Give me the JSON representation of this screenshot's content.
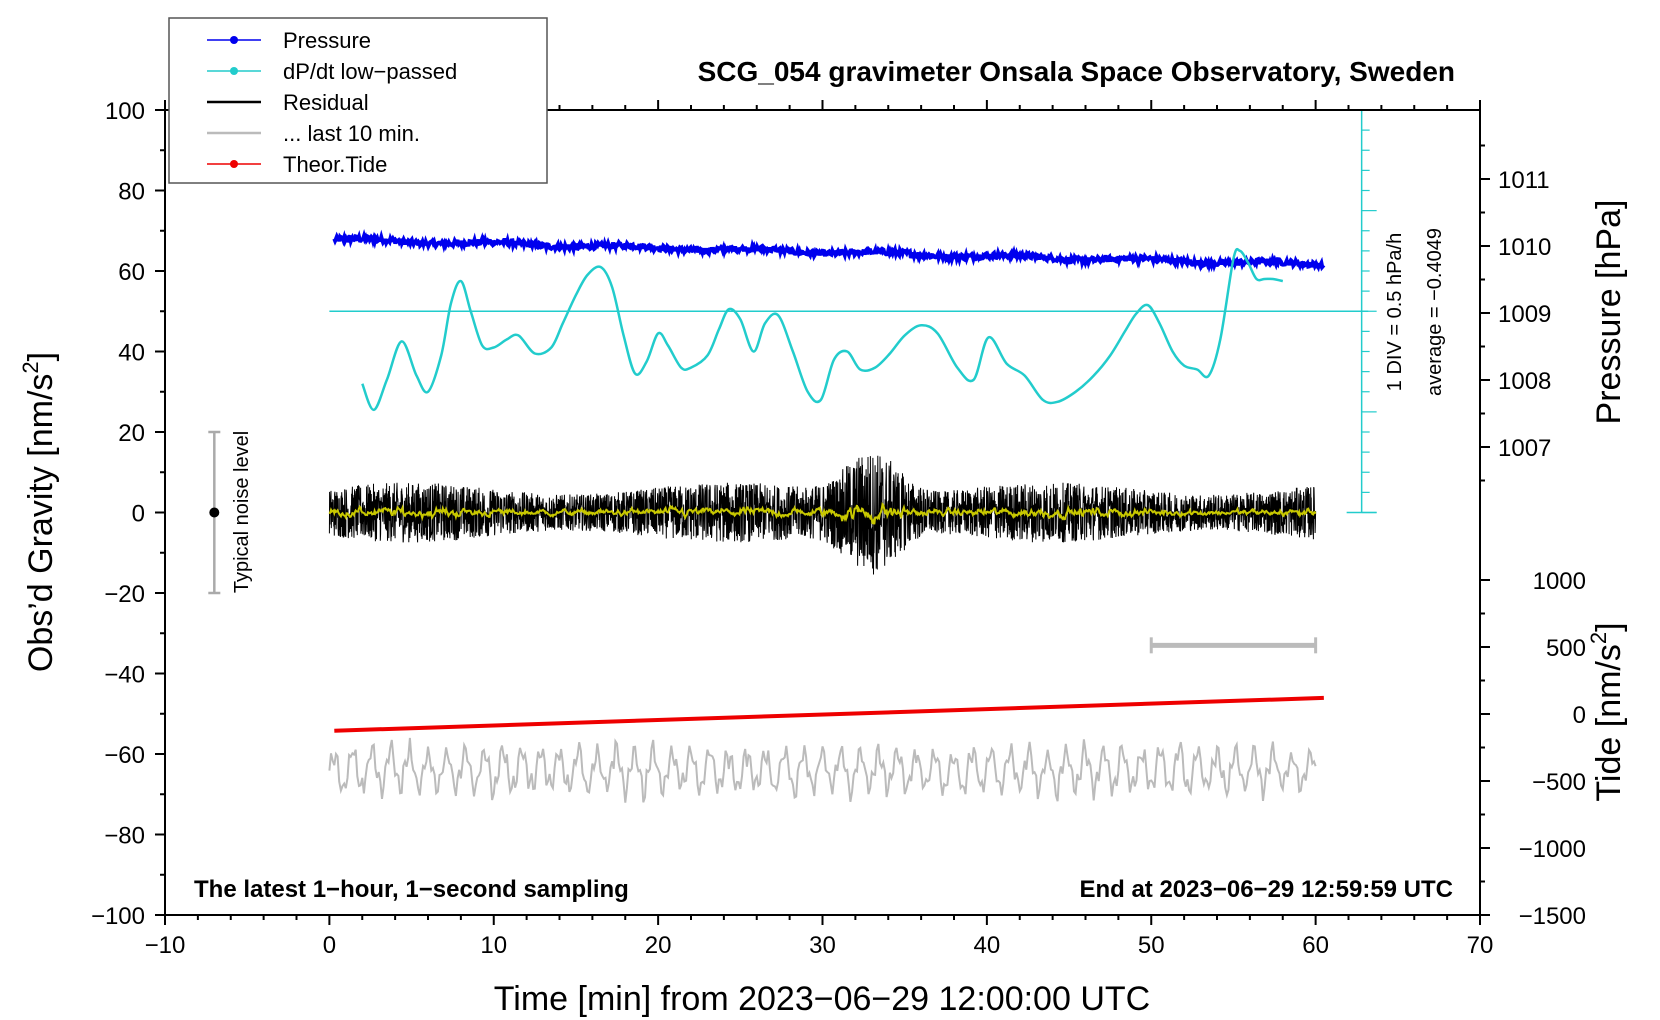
{
  "chart_data": {
    "type": "line",
    "title": "SCG_054 gravimeter Onsala Space Observatory, Sweden",
    "xlabel": "Time [min] from 2023−06−29 12:00:00 UTC",
    "ylabel_left_main": "Obs’d Gravity [nm/s",
    "ylabel_left_sup": "2",
    "ylabel_left_end": "]",
    "ylabel_right_pressure": "Pressure [hPa]",
    "ylabel_right_tide_main": "Tide [nm/s",
    "ylabel_right_tide_sup": "2",
    "ylabel_right_tide_end": "]",
    "xlim": [
      -10,
      70
    ],
    "ylim_left": [
      -100,
      100
    ],
    "x_ticks": [
      "−10",
      "0",
      "10",
      "20",
      "30",
      "40",
      "50",
      "60",
      "70"
    ],
    "y_ticks_left": [
      "100",
      "80",
      "60",
      "40",
      "20",
      "0",
      "−20",
      "−40",
      "−60",
      "−80",
      "−100"
    ],
    "pressure_ticks": [
      "1011",
      "1010",
      "1009",
      "1008",
      "1007"
    ],
    "tide_ticks": [
      "1000",
      "500",
      "0",
      "−500",
      "−1000",
      "−1500"
    ],
    "bottom_left_note": "The latest 1−hour, 1−second sampling",
    "bottom_right_note": "End at 2023−06−29 12:59:59 UTC",
    "noise_label": "Typical noise level",
    "dpdt_scale_label": "1 DIV = 0.5 hPa/h",
    "dpdt_average_label": "average = −0.4049",
    "legend": [
      {
        "label": "Pressure",
        "color": "#0000ee",
        "marker": true
      },
      {
        "label": "dP/dt low−passed",
        "color": "#22cccc",
        "marker": true
      },
      {
        "label": "Residual",
        "color": "#000000",
        "marker": false
      },
      {
        "label": "... last 10 min.",
        "color": "#bbbbbb",
        "marker": false
      },
      {
        "label": "Theor.Tide",
        "color": "#ee0000",
        "marker": true
      }
    ],
    "colors": {
      "pressure": "#0000ee",
      "dpdt": "#22cccc",
      "residual": "#000000",
      "residual_smooth": "#c8c800",
      "last10": "#bbbbbb",
      "tide": "#ee0000",
      "noise_bar": "#aaaaaa"
    },
    "series": {
      "pressure": {
        "x": [
          0.3,
          60.5
        ],
        "y_left": [
          67.8,
          61.6
        ],
        "y_hpa": [
          1010.2,
          1009.6
        ]
      },
      "dpdt_reference_y_left": 50,
      "dpdt": {
        "x": [
          2,
          2.7,
          3.5,
          4.4,
          5.3,
          6.0,
          6.8,
          7.4,
          8.0,
          8.6,
          9.3,
          10,
          10.8,
          11.5,
          12.5,
          13.5,
          14.2,
          15,
          15.7,
          16.5,
          17.2,
          17.9,
          18.6,
          19.3,
          20,
          20.6,
          21.4,
          22,
          23,
          23.7,
          24.3,
          25,
          25.8,
          26.5,
          27.3,
          28.2,
          29.1,
          29.9,
          30.7,
          31.5,
          32.3,
          33.2,
          34.1,
          35,
          36,
          37,
          38.2,
          39.2,
          40.1,
          41.2,
          42.3,
          43.4,
          44.3,
          45.4,
          46.5,
          47.5,
          48.4,
          49.1,
          49.8,
          50.5,
          51.3,
          52,
          52.8,
          53.5,
          54.2,
          55,
          55.4,
          55.9,
          56.4,
          56.9,
          57.4,
          58
        ],
        "y": [
          32,
          25.5,
          33,
          42.5,
          34,
          30,
          39,
          52,
          57.5,
          50,
          41.5,
          41,
          43,
          44,
          39.5,
          41,
          47,
          54,
          59,
          61,
          56,
          44,
          34.5,
          37.5,
          44.5,
          41.5,
          36,
          36,
          39,
          45.5,
          50.5,
          48,
          40,
          47,
          49,
          40,
          30,
          28,
          38,
          40,
          35.5,
          36,
          39.5,
          44,
          46.5,
          44.5,
          36,
          33,
          43.5,
          37,
          34,
          28,
          27.5,
          30,
          34,
          39,
          45,
          49.5,
          51.5,
          47,
          40,
          36.5,
          35.5,
          34,
          43,
          63,
          65,
          62,
          58,
          58,
          58,
          57.5
        ]
      },
      "residual": {
        "x_range": [
          0,
          60
        ],
        "center": 0
      },
      "tide": {
        "x": [
          0.3,
          60.5
        ],
        "y_nms2": [
          -125,
          120
        ]
      },
      "last10_bar": {
        "x": [
          50,
          60
        ],
        "y_left": -33
      }
    }
  }
}
